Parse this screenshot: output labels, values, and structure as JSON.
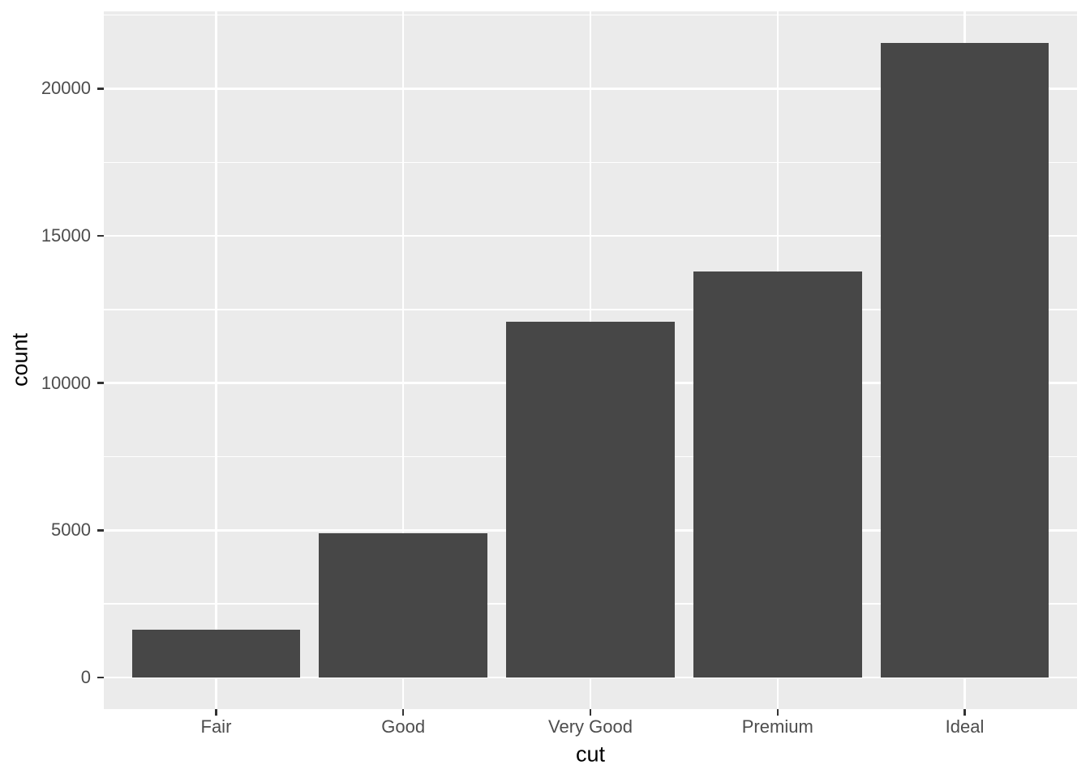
{
  "chart_data": {
    "type": "bar",
    "title": "",
    "xlabel": "cut",
    "ylabel": "count",
    "categories": [
      "Fair",
      "Good",
      "Very Good",
      "Premium",
      "Ideal"
    ],
    "values": [
      1610,
      4906,
      12082,
      13791,
      21551
    ],
    "y_major_ticks": [
      0,
      5000,
      10000,
      15000,
      20000
    ],
    "y_major_tick_labels": [
      "0",
      "5000",
      "10000",
      "15000",
      "20000"
    ],
    "y_minor_ticks": [
      2500,
      7500,
      12500,
      17500,
      22500
    ],
    "ylim": [
      -1078,
      22629
    ],
    "xlim": [
      0.4,
      5.6
    ],
    "bar_width": 0.9,
    "legend": "none",
    "grid": {
      "horizontal_major": true,
      "horizontal_minor": true,
      "vertical_major": true,
      "vertical_minor": false
    },
    "colors": {
      "bar_fill": "#474747",
      "panel_background": "#EBEBEB",
      "gridline": "#FFFFFF",
      "axis_text": "#4D4D4D",
      "axis_title": "#000000",
      "tick_mark": "#333333",
      "figure_background": "#FFFFFF"
    }
  }
}
